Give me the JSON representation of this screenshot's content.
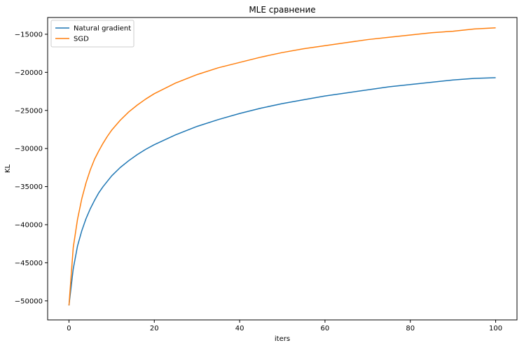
{
  "chart_data": {
    "type": "line",
    "title": "MLE сравнение",
    "xlabel": "iters",
    "ylabel": "KL",
    "xlim": [
      -5,
      105
    ],
    "ylim": [
      -52500,
      -12800
    ],
    "x_ticks": [
      0,
      20,
      40,
      60,
      80,
      100
    ],
    "y_ticks": [
      -50000,
      -45000,
      -40000,
      -35000,
      -30000,
      -25000,
      -20000,
      -15000
    ],
    "x_tick_labels": [
      "0",
      "20",
      "40",
      "60",
      "80",
      "100"
    ],
    "y_tick_labels": [
      "−50000",
      "−45000",
      "−40000",
      "−35000",
      "−30000",
      "−25000",
      "−20000",
      "−15000"
    ],
    "legend_position": "top-left",
    "grid": false,
    "series": [
      {
        "name": "Natural gradient",
        "color": "#1f77b4",
        "points": [
          [
            0,
            -50600
          ],
          [
            1,
            -45800
          ],
          [
            2,
            -42800
          ],
          [
            3,
            -40800
          ],
          [
            4,
            -39200
          ],
          [
            5,
            -37900
          ],
          [
            6,
            -36800
          ],
          [
            7,
            -35800
          ],
          [
            8,
            -35000
          ],
          [
            9,
            -34300
          ],
          [
            10,
            -33600
          ],
          [
            12,
            -32500
          ],
          [
            14,
            -31600
          ],
          [
            16,
            -30800
          ],
          [
            18,
            -30100
          ],
          [
            20,
            -29500
          ],
          [
            25,
            -28200
          ],
          [
            30,
            -27100
          ],
          [
            35,
            -26200
          ],
          [
            40,
            -25400
          ],
          [
            45,
            -24700
          ],
          [
            50,
            -24100
          ],
          [
            55,
            -23600
          ],
          [
            60,
            -23100
          ],
          [
            65,
            -22700
          ],
          [
            70,
            -22300
          ],
          [
            75,
            -21900
          ],
          [
            80,
            -21600
          ],
          [
            85,
            -21300
          ],
          [
            90,
            -21000
          ],
          [
            95,
            -20800
          ],
          [
            100,
            -20700
          ]
        ]
      },
      {
        "name": "SGD",
        "color": "#ff7f0e",
        "points": [
          [
            0,
            -50600
          ],
          [
            1,
            -43000
          ],
          [
            2,
            -39300
          ],
          [
            3,
            -36600
          ],
          [
            4,
            -34500
          ],
          [
            5,
            -32800
          ],
          [
            6,
            -31400
          ],
          [
            7,
            -30300
          ],
          [
            8,
            -29300
          ],
          [
            9,
            -28400
          ],
          [
            10,
            -27600
          ],
          [
            12,
            -26300
          ],
          [
            14,
            -25200
          ],
          [
            16,
            -24300
          ],
          [
            18,
            -23500
          ],
          [
            20,
            -22800
          ],
          [
            25,
            -21400
          ],
          [
            30,
            -20300
          ],
          [
            35,
            -19400
          ],
          [
            40,
            -18700
          ],
          [
            45,
            -18000
          ],
          [
            50,
            -17400
          ],
          [
            55,
            -16900
          ],
          [
            60,
            -16500
          ],
          [
            65,
            -16100
          ],
          [
            70,
            -15700
          ],
          [
            75,
            -15400
          ],
          [
            80,
            -15100
          ],
          [
            85,
            -14800
          ],
          [
            90,
            -14600
          ],
          [
            95,
            -14300
          ],
          [
            100,
            -14150
          ]
        ]
      }
    ]
  }
}
